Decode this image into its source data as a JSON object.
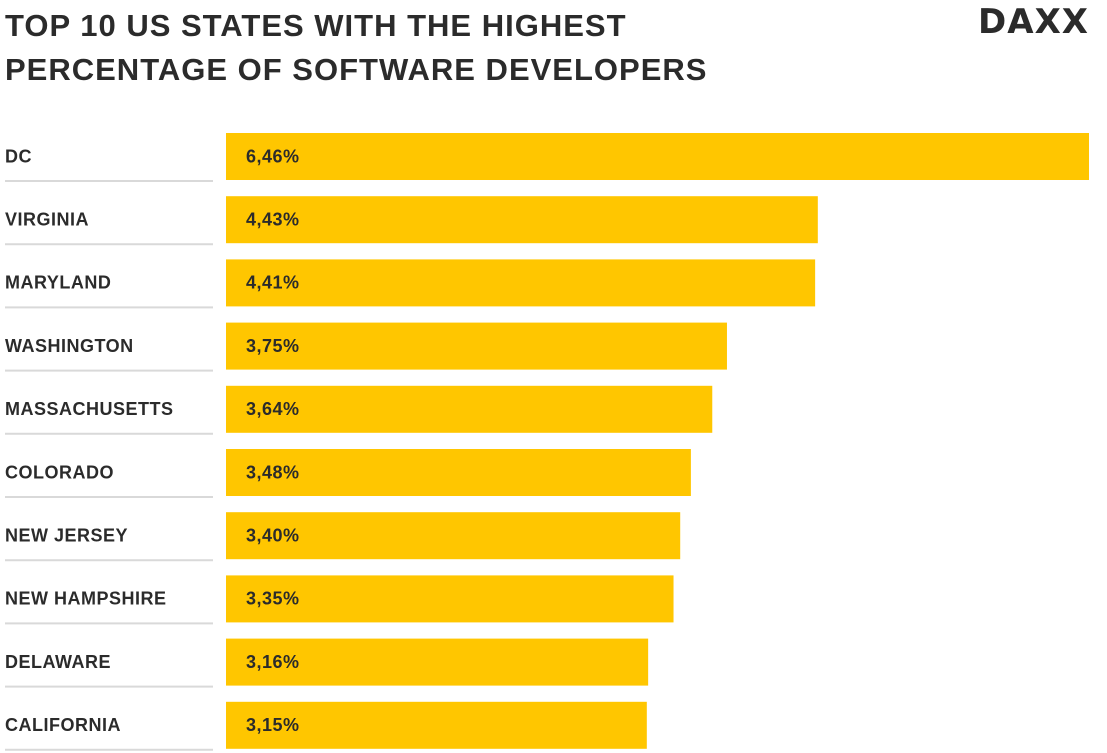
{
  "chart_data": {
    "type": "hbar",
    "title": "TOP 10 US STATES WITH THE HIGHEST PERCENTAGE OF SOFTWARE DEVELOPERS",
    "logo": "DAXX",
    "categories": [
      "DC",
      "VIRGINIA",
      "MARYLAND",
      "WASHINGTON",
      "MASSACHUSETTS",
      "COLORADO",
      "NEW JERSEY",
      "NEW HAMPSHIRE",
      "DELAWARE",
      "CALIFORNIA"
    ],
    "values": [
      6.46,
      4.43,
      4.41,
      3.75,
      3.64,
      3.48,
      3.4,
      3.35,
      3.16,
      3.15
    ],
    "value_labels": [
      "6,46%",
      "4,43%",
      "4,41%",
      "3,75%",
      "3,64%",
      "3,48%",
      "3,40%",
      "3,35%",
      "3,16%",
      "3,15%"
    ],
    "color": "#ffc600"
  }
}
